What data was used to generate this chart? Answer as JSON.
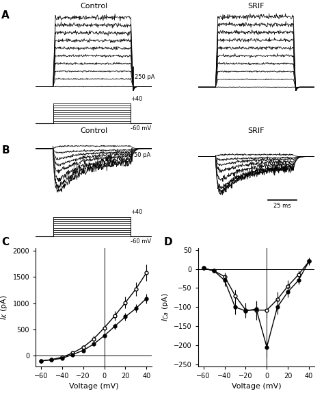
{
  "C_voltage": [
    -60,
    -50,
    -40,
    -30,
    -20,
    -10,
    0,
    10,
    20,
    30,
    40
  ],
  "C_control": [
    -100,
    -80,
    -50,
    20,
    100,
    220,
    380,
    560,
    740,
    900,
    1090
  ],
  "C_control_err": [
    20,
    20,
    20,
    25,
    30,
    40,
    50,
    60,
    70,
    80,
    90
  ],
  "C_srif": [
    -100,
    -75,
    -30,
    50,
    160,
    320,
    530,
    760,
    1010,
    1270,
    1580
  ],
  "C_srif_err": [
    20,
    20,
    25,
    30,
    40,
    55,
    70,
    90,
    110,
    130,
    160
  ],
  "D_voltage": [
    -60,
    -50,
    -40,
    -30,
    -20,
    -10,
    0,
    10,
    20,
    30,
    40
  ],
  "D_control": [
    2,
    -5,
    -30,
    -100,
    -110,
    -105,
    -205,
    -100,
    -60,
    -30,
    20
  ],
  "D_control_err": [
    3,
    5,
    15,
    20,
    15,
    20,
    25,
    20,
    15,
    10,
    10
  ],
  "D_srif": [
    2,
    -5,
    -20,
    -70,
    -108,
    -108,
    -108,
    -80,
    -45,
    -15,
    20
  ],
  "D_srif_err": [
    3,
    5,
    10,
    15,
    20,
    25,
    20,
    20,
    15,
    10,
    8
  ],
  "A_n_traces": 10,
  "A_ctrl_max": 900,
  "A_srif_max": 1050,
  "B_n_traces": 8,
  "B_ctrl_peaks": [
    10,
    -20,
    -50,
    -80,
    -110,
    -150,
    -180,
    -205
  ],
  "B_srif_peaks": [
    5,
    -10,
    -25,
    -45,
    -70,
    -95,
    -105,
    -110
  ]
}
